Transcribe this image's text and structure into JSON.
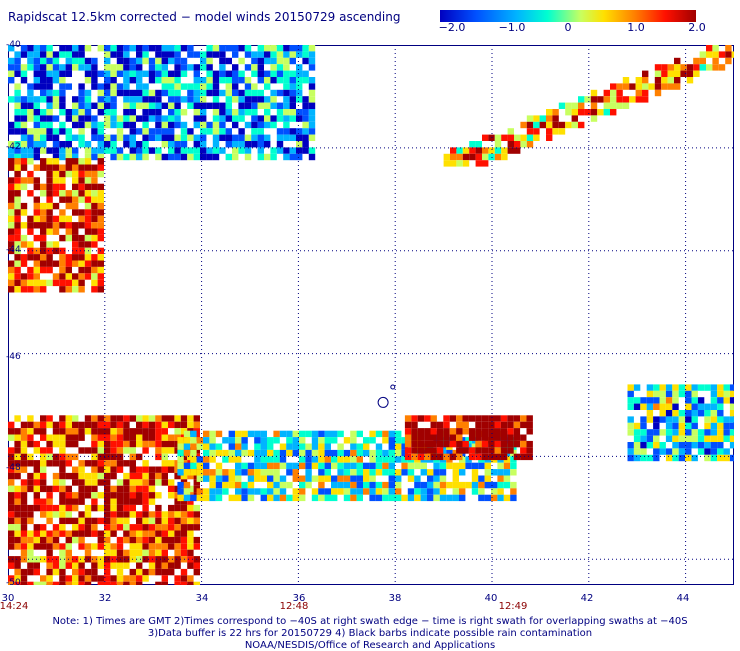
{
  "title": "Rapidscat 12.5km corrected − model winds 20150729 ascending",
  "colorbar": {
    "tick_labels": [
      "−2.0",
      "−1.0",
      "0",
      "1.0",
      "2.0"
    ],
    "tick_values": [
      -2.0,
      -1.0,
      0,
      1.0,
      2.0
    ],
    "range": [
      -2.0,
      2.0
    ],
    "colors": [
      "#0000c0",
      "#0050ff",
      "#00b4ff",
      "#00ffd0",
      "#c8ff60",
      "#ffe000",
      "#ff8000",
      "#ff1000",
      "#a00000"
    ]
  },
  "map": {
    "lon_range": [
      30,
      45
    ],
    "lat_range": [
      -40,
      -50.5
    ],
    "lon_labels": [
      "30",
      "32",
      "34",
      "36",
      "38",
      "40",
      "42",
      "44"
    ],
    "lon_values": [
      30,
      32,
      34,
      36,
      38,
      40,
      42,
      44
    ],
    "lat_labels": [
      "-40",
      "-42",
      "-44",
      "-46",
      "-48",
      "-50"
    ],
    "lat_values": [
      -40,
      -42,
      -44,
      -46,
      -48,
      -50
    ],
    "time_labels": [
      {
        "lon": 30,
        "text": "14:24"
      },
      {
        "lon": 35.9,
        "text": "12:48"
      },
      {
        "lon": 40.5,
        "text": "12:49"
      }
    ],
    "grid": "dotted",
    "swaths": [
      {
        "name": "northwest-upper",
        "lon": [
          30,
          36.3
        ],
        "lat": [
          -40,
          -42.2
        ],
        "mean": -1.0
      },
      {
        "name": "northwest-lower",
        "lon": [
          30,
          31.9
        ],
        "lat": [
          -42.2,
          -44.8
        ],
        "mean": 1.2
      },
      {
        "name": "northeast-diagonal",
        "lon": [
          39,
          45
        ],
        "lat": [
          -40,
          -42.3
        ],
        "mean": 0.8
      },
      {
        "name": "south-west-block",
        "lon": [
          30,
          33.9
        ],
        "lat": [
          -47.2,
          -50.5
        ],
        "mean": 1.3
      },
      {
        "name": "south-middle-band",
        "lon": [
          33.5,
          40.5
        ],
        "lat": [
          -47.5,
          -48.8
        ],
        "mean": -0.3
      },
      {
        "name": "south-red-patch",
        "lon": [
          38.2,
          40.8
        ],
        "lat": [
          -47.2,
          -48.0
        ],
        "mean": 2.0
      },
      {
        "name": "southeast-edge",
        "lon": [
          42.8,
          45
        ],
        "lat": [
          -46.6,
          -48.0
        ],
        "mean": -0.5
      }
    ]
  },
  "notes": [
    "Note: 1) Times are GMT 2)Times correspond to −40S at right swath edge − time is right swath for overlapping swaths at −40S",
    "3)Data buffer is 22 hrs for 20150729 4) Black barbs indicate possible rain contamination",
    "NOAA/NESDIS/Office of Research and Applications"
  ]
}
